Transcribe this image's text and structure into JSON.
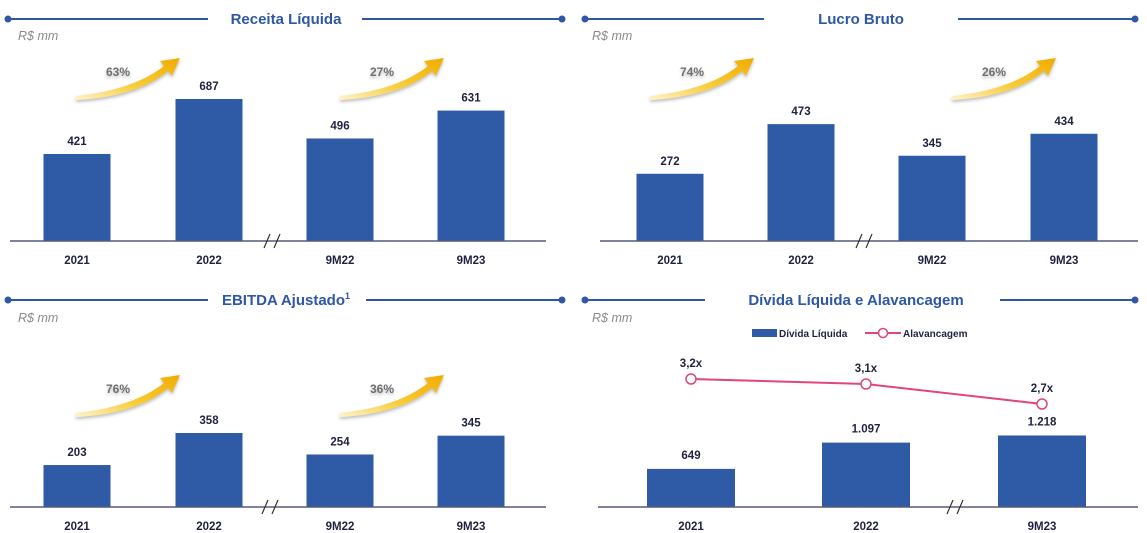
{
  "colors": {
    "bar": "#2e5aa6",
    "title": "#2e57a4",
    "header_line": "#2e57a4",
    "arrow": "#f5b800",
    "leverage_line": "#e2457a",
    "baseline": "#555a7a"
  },
  "chart_data": [
    {
      "type": "bar",
      "title": "Receita Líquida",
      "unit": "R$ mm",
      "categories": [
        "2021",
        "2022",
        "9M22",
        "9M23"
      ],
      "values": [
        421,
        687,
        496,
        631
      ],
      "value_labels": [
        "421",
        "687",
        "496",
        "631"
      ],
      "growth_labels": [
        "63%",
        "27%"
      ],
      "axis_break": "//",
      "ylim": [
        0,
        800
      ]
    },
    {
      "type": "bar",
      "title": "Lucro Bruto",
      "unit": "R$ mm",
      "categories": [
        "2021",
        "2022",
        "9M22",
        "9M23"
      ],
      "values": [
        272,
        473,
        345,
        434
      ],
      "value_labels": [
        "272",
        "473",
        "345",
        "434"
      ],
      "growth_labels": [
        "74%",
        "26%"
      ],
      "axis_break": "//",
      "ylim": [
        0,
        550
      ]
    },
    {
      "type": "bar",
      "title": "EBITDA Ajustado",
      "title_superscript": "1",
      "unit": "R$ mm",
      "categories": [
        "2021",
        "2022",
        "9M22",
        "9M23"
      ],
      "values": [
        203,
        358,
        254,
        345
      ],
      "value_labels": [
        "203",
        "358",
        "254",
        "345"
      ],
      "growth_labels": [
        "76%",
        "36%"
      ],
      "axis_break": "//",
      "ylim": [
        0,
        420
      ]
    },
    {
      "type": "bar",
      "title": "Dívida Líquida e Alavancagem",
      "unit": "R$ mm",
      "categories": [
        "2021",
        "2022",
        "9M23"
      ],
      "series": [
        {
          "name": "Dívida Líquida",
          "type": "bar",
          "values": [
            649,
            1097,
            1218
          ],
          "labels": [
            "649",
            "1.097",
            "1.218"
          ]
        },
        {
          "name": "Alavancagem",
          "type": "line",
          "values": [
            3.2,
            3.1,
            2.7
          ],
          "labels": [
            "3,2x",
            "3,1x",
            "2,7x"
          ]
        }
      ],
      "axis_break": "//",
      "legend": "top-center",
      "ylim": [
        0,
        1400
      ]
    }
  ]
}
